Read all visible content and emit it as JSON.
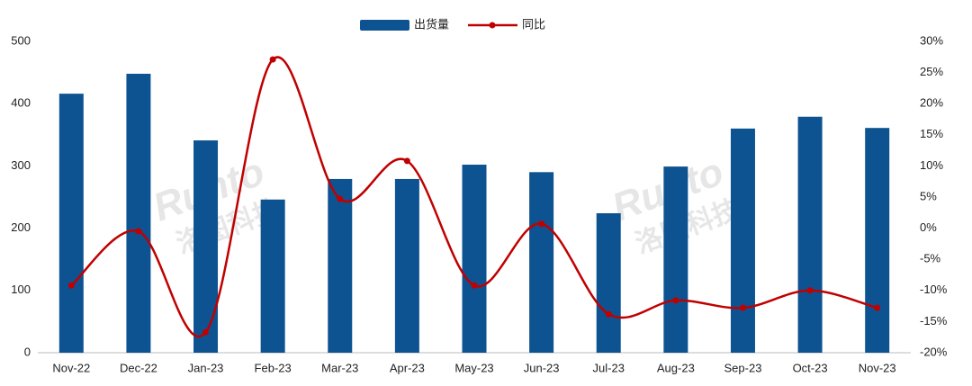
{
  "chart_data": {
    "type": "bar_line",
    "watermark": [
      "Runto",
      "洛图科技"
    ],
    "categories": [
      "Nov-22",
      "Dec-22",
      "Jan-23",
      "Feb-23",
      "Mar-23",
      "Apr-23",
      "May-23",
      "Jun-23",
      "Jul-23",
      "Aug-23",
      "Sep-23",
      "Oct-23",
      "Nov-23"
    ],
    "series": [
      {
        "name": "出货量",
        "type": "bar",
        "color": "#0d5391",
        "values": [
          416,
          448,
          341,
          246,
          279,
          279,
          302,
          290,
          224,
          299,
          360,
          379,
          361
        ]
      },
      {
        "name": "同比",
        "type": "line",
        "axis": "y2",
        "color": "#c00000",
        "values": [
          -9.2,
          -0.5,
          -16.7,
          27.1,
          4.7,
          10.8,
          -9.2,
          0.7,
          -13.8,
          -11.6,
          -12.8,
          -10,
          -12.8
        ]
      }
    ],
    "ylim": [
      0,
      500
    ],
    "yticks": [
      0,
      100,
      200,
      300,
      400,
      500
    ],
    "y2lim": [
      -20,
      30
    ],
    "y2ticks": [
      {
        "value": -20,
        "label": "-20%"
      },
      {
        "value": -15,
        "label": "-15%"
      },
      {
        "value": -10,
        "label": "-10%"
      },
      {
        "value": -5,
        "label": "-5%"
      },
      {
        "value": 0,
        "label": "0%"
      },
      {
        "value": 5,
        "label": "5%"
      },
      {
        "value": 10,
        "label": "10%"
      },
      {
        "value": 15,
        "label": "15%"
      },
      {
        "value": 20,
        "label": "20%"
      },
      {
        "value": 25,
        "label": "25%"
      },
      {
        "value": 30,
        "label": "30%"
      }
    ],
    "legend": "top"
  }
}
